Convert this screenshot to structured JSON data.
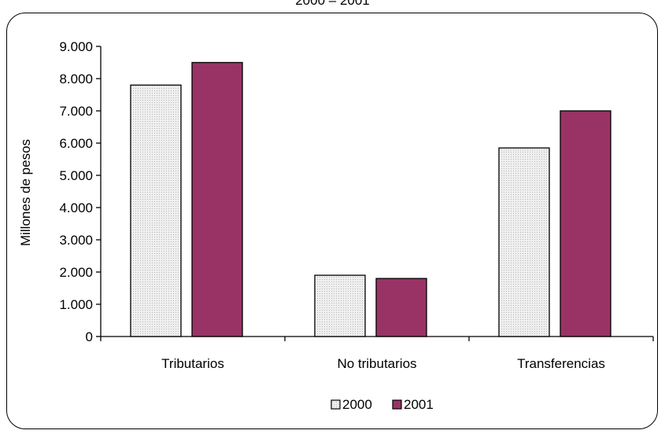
{
  "header": {
    "title": "2000 – 2001"
  },
  "colors": {
    "series_2000": "#e8e8e8",
    "series_2001": "#993366",
    "axis": "#000000"
  },
  "chart_data": {
    "type": "bar",
    "title": "2000 – 2001",
    "xlabel": "",
    "ylabel": "Millones de pesos",
    "categories": [
      "Tributarios",
      "No tributarios",
      "Transferencias"
    ],
    "series": [
      {
        "name": "2000",
        "values": [
          7800,
          1900,
          5850
        ]
      },
      {
        "name": "2001",
        "values": [
          8500,
          1800,
          7000
        ]
      }
    ],
    "ylim": [
      0,
      9000
    ],
    "yticks": [
      0,
      1000,
      2000,
      3000,
      4000,
      5000,
      6000,
      7000,
      8000,
      9000
    ],
    "ytick_labels": [
      "0",
      "1.000",
      "2.000",
      "3.000",
      "4.000",
      "5.000",
      "6.000",
      "7.000",
      "8.000",
      "9.000"
    ],
    "grid": false,
    "legend_position": "bottom-center"
  }
}
